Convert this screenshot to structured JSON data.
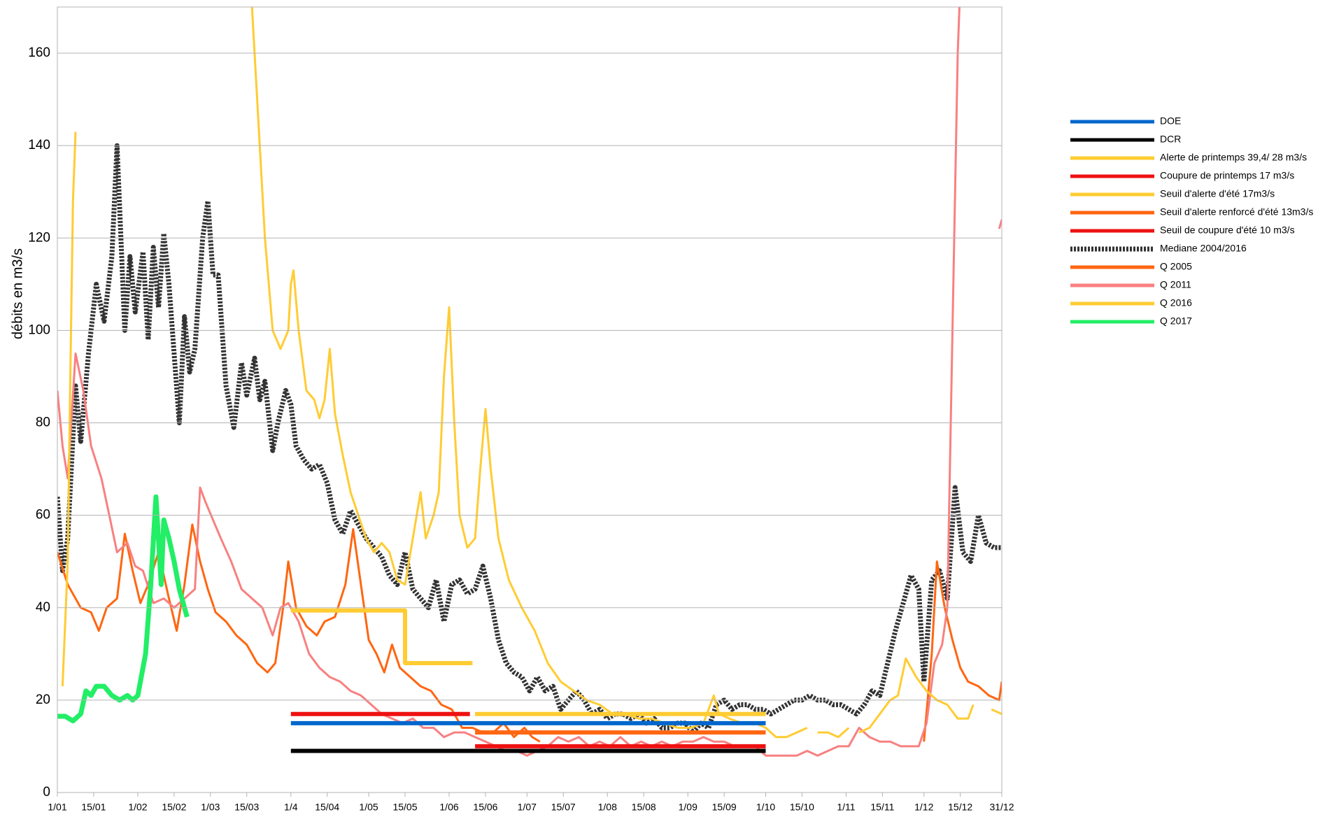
{
  "chart_data": {
    "type": "line",
    "y_label": "débits en m3/s",
    "xlim": [
      1,
      365
    ],
    "ylim": [
      0,
      170
    ],
    "grid": true,
    "legend": "right",
    "xticks": [
      {
        "value": 1,
        "label": "1/01"
      },
      {
        "value": 15,
        "label": "15/01"
      },
      {
        "value": 32,
        "label": "1/02"
      },
      {
        "value": 46,
        "label": "15/02"
      },
      {
        "value": 60,
        "label": "1/03"
      },
      {
        "value": 74,
        "label": "15/03"
      },
      {
        "value": 91,
        "label": "1/4"
      },
      {
        "value": 105,
        "label": "15/04"
      },
      {
        "value": 121,
        "label": "1/05"
      },
      {
        "value": 135,
        "label": "15/05"
      },
      {
        "value": 152,
        "label": "1/06"
      },
      {
        "value": 166,
        "label": "15/06"
      },
      {
        "value": 182,
        "label": "1/07"
      },
      {
        "value": 196,
        "label": "15/07"
      },
      {
        "value": 213,
        "label": "1/08"
      },
      {
        "value": 227,
        "label": "15/08"
      },
      {
        "value": 244,
        "label": "1/09"
      },
      {
        "value": 258,
        "label": "15/09"
      },
      {
        "value": 274,
        "label": "1/10"
      },
      {
        "value": 288,
        "label": "15/10"
      },
      {
        "value": 305,
        "label": "1/11"
      },
      {
        "value": 319,
        "label": "15/11"
      },
      {
        "value": 335,
        "label": "1/12"
      },
      {
        "value": 349,
        "label": "15/12"
      },
      {
        "value": 365,
        "label": "31/12"
      }
    ],
    "yticks": [
      0,
      20,
      40,
      60,
      80,
      100,
      120,
      140,
      160
    ],
    "series": [
      {
        "name": "DOE",
        "color": "#0066cc",
        "x": [
          91,
          274
        ],
        "values": [
          15,
          15
        ]
      },
      {
        "name": "DCR",
        "color": "#000000",
        "x": [
          91,
          274
        ],
        "values": [
          9,
          9
        ]
      },
      {
        "name": "Alerte de printemps 39,4/ 28 m3/s",
        "color": "#ffcc33",
        "x": [
          91,
          135,
          135,
          161
        ],
        "values": [
          39.4,
          39.4,
          28,
          28
        ]
      },
      {
        "name": "Coupure de printemps 17 m3/s",
        "color": "#ee1111",
        "x": [
          91,
          160
        ],
        "values": [
          17,
          17
        ]
      },
      {
        "name": "Seuil d'alerte d'été 17m3/s",
        "color": "#ffcc33",
        "x": [
          162,
          274
        ],
        "values": [
          17,
          17
        ]
      },
      {
        "name": "Seuil d'alerte renforcé d'été 13m3/s",
        "color": "#ff6611",
        "x": [
          162,
          274
        ],
        "values": [
          13,
          13
        ]
      },
      {
        "name": "Seuil de coupure d'été 10 m3/s",
        "color": "#ee1111",
        "x": [
          162,
          274
        ],
        "values": [
          10,
          10
        ]
      },
      {
        "name": "Mediane 2004/2016",
        "color": "#333333",
        "dashed": true,
        "x": [
          1,
          3,
          5,
          8,
          10,
          13,
          16,
          19,
          22,
          24,
          27,
          29,
          31,
          34,
          36,
          38,
          40,
          42,
          44,
          46,
          48,
          50,
          52,
          54,
          57,
          59,
          61,
          63,
          66,
          69,
          72,
          74,
          77,
          79,
          81,
          84,
          86,
          89,
          91,
          93,
          96,
          99,
          102,
          105,
          108,
          111,
          114,
          117,
          120,
          123,
          126,
          129,
          132,
          135,
          138,
          141,
          144,
          147,
          150,
          153,
          156,
          159,
          162,
          165,
          168,
          171,
          174,
          177,
          180,
          183,
          186,
          189,
          192,
          195,
          198,
          201,
          204,
          207,
          210,
          213,
          216,
          219,
          222,
          225,
          228,
          231,
          234,
          237,
          240,
          243,
          246,
          249,
          252,
          255,
          258,
          261,
          264,
          267,
          270,
          273,
          276,
          279,
          282,
          285,
          288,
          291,
          294,
          297,
          300,
          303,
          306,
          309,
          312,
          315,
          318,
          321,
          324,
          327,
          330,
          333,
          335,
          338,
          341,
          344,
          347,
          350,
          353,
          356,
          359,
          362,
          365
        ],
        "values": [
          64,
          48,
          55,
          88,
          76,
          95,
          110,
          102,
          116,
          140,
          100,
          116,
          104,
          117,
          98,
          118,
          105,
          121,
          110,
          95,
          80,
          103,
          91,
          96,
          120,
          128,
          112,
          112,
          88,
          79,
          93,
          86,
          94,
          85,
          89,
          74,
          80,
          87,
          84,
          75,
          72,
          70,
          71,
          67,
          59,
          56,
          61,
          58,
          55,
          53,
          51,
          47,
          45,
          52,
          44,
          42,
          40,
          46,
          37,
          45,
          46,
          43,
          44,
          49,
          42,
          33,
          28,
          26,
          25,
          22,
          25,
          22,
          23,
          18,
          20,
          22,
          20,
          17,
          18,
          16,
          17,
          17,
          16,
          17,
          15,
          16,
          14,
          14,
          15,
          15,
          13,
          15,
          14,
          19,
          20,
          18,
          19,
          19,
          18,
          18,
          17,
          18,
          19,
          20,
          20,
          21,
          20,
          20,
          19,
          19,
          18,
          17,
          19,
          22,
          21,
          28,
          35,
          41,
          47,
          44,
          24,
          46,
          48,
          42,
          66,
          52,
          50,
          60,
          54,
          53,
          53
        ]
      },
      {
        "name": "Q 2005",
        "color": "#ff6611",
        "x": [
          1,
          5,
          10,
          14,
          17,
          20,
          24,
          27,
          30,
          33,
          36,
          40,
          44,
          47,
          50,
          53,
          56,
          59,
          62,
          66,
          70,
          74,
          78,
          82,
          85,
          88,
          90,
          93,
          97,
          101,
          104,
          108,
          112,
          115,
          118,
          121,
          124,
          127,
          130,
          133,
          137,
          141,
          145,
          149,
          153,
          157,
          161,
          165,
          169,
          173,
          177,
          181,
          184,
          187,
          null,
          335,
          338,
          340,
          343,
          346,
          349,
          352,
          356,
          360,
          364,
          365
        ],
        "values": [
          52,
          45,
          40,
          39,
          35,
          40,
          42,
          56,
          48,
          41,
          45,
          52,
          42,
          35,
          45,
          58,
          50,
          44,
          39,
          37,
          34,
          32,
          28,
          26,
          28,
          40,
          50,
          40,
          36,
          34,
          37,
          38,
          45,
          57,
          45,
          33,
          30,
          26,
          32,
          27,
          25,
          23,
          22,
          19,
          18,
          14,
          14,
          13,
          13,
          15,
          12,
          14,
          12,
          11,
          null,
          11,
          30,
          50,
          40,
          33,
          27,
          24,
          23,
          21,
          20,
          24
        ]
      },
      {
        "name": "Q 2011",
        "color": "#f88080",
        "x": [
          1,
          3,
          5,
          8,
          11,
          14,
          18,
          21,
          24,
          28,
          31,
          34,
          38,
          42,
          46,
          50,
          54,
          56,
          58,
          61,
          64,
          68,
          72,
          76,
          80,
          84,
          87,
          90,
          94,
          98,
          102,
          106,
          110,
          114,
          118,
          122,
          126,
          130,
          134,
          138,
          142,
          146,
          150,
          154,
          158,
          162,
          166,
          170,
          174,
          178,
          182,
          186,
          190,
          194,
          198,
          202,
          206,
          210,
          214,
          218,
          222,
          226,
          230,
          234,
          238,
          242,
          246,
          250,
          254,
          258,
          262,
          266,
          270,
          274,
          278,
          282,
          286,
          290,
          294,
          298,
          302,
          306,
          310,
          314,
          318,
          322,
          326,
          330,
          333,
          336,
          339,
          342,
          344,
          346,
          348,
          349,
          null,
          364,
          365
        ],
        "values": [
          87,
          75,
          68,
          95,
          87,
          75,
          68,
          60,
          52,
          54,
          49,
          48,
          41,
          42,
          40,
          42,
          44,
          66,
          63,
          59,
          55,
          50,
          44,
          42,
          40,
          34,
          40,
          41,
          37,
          30,
          27,
          25,
          24,
          22,
          21,
          19,
          17,
          16,
          15,
          16,
          14,
          14,
          12,
          13,
          13,
          12,
          11,
          10,
          9,
          9,
          8,
          9,
          10,
          12,
          11,
          12,
          10,
          11,
          10,
          12,
          10,
          11,
          10,
          11,
          10,
          11,
          11,
          12,
          11,
          11,
          10,
          10,
          10,
          8,
          8,
          8,
          8,
          9,
          8,
          9,
          10,
          10,
          14,
          12,
          11,
          11,
          10,
          10,
          10,
          15,
          28,
          32,
          40,
          100,
          160,
          175,
          null,
          122,
          124
        ]
      },
      {
        "name": "Q 2016",
        "color": "#ffcc33",
        "x": [
          3,
          5,
          6,
          7,
          8,
          null,
          76,
          78,
          81,
          84,
          87,
          90,
          91,
          92,
          94,
          97,
          100,
          102,
          104,
          106,
          108,
          111,
          114,
          117,
          120,
          123,
          126,
          129,
          132,
          135,
          138,
          141,
          143,
          146,
          148,
          150,
          152,
          154,
          156,
          159,
          162,
          164,
          166,
          168,
          171,
          175,
          180,
          185,
          190,
          195,
          200,
          205,
          210,
          215,
          220,
          225,
          230,
          235,
          240,
          245,
          250,
          254,
          256,
          260,
          265,
          270,
          274,
          278,
          282,
          286,
          290,
          null,
          294,
          298,
          302,
          306,
          null,
          310,
          314,
          318,
          322,
          325,
          328,
          332,
          336,
          340,
          344,
          348,
          352,
          354,
          null,
          361,
          365
        ],
        "values": [
          23,
          50,
          90,
          128,
          143,
          null,
          170,
          150,
          120,
          100,
          96,
          100,
          110,
          113,
          100,
          87,
          85,
          81,
          85,
          96,
          82,
          73,
          65,
          60,
          55,
          52,
          54,
          52,
          46,
          45,
          55,
          65,
          55,
          60,
          65,
          90,
          105,
          80,
          60,
          53,
          55,
          70,
          83,
          70,
          55,
          46,
          40,
          35,
          28,
          24,
          22,
          20,
          19,
          17,
          17,
          16,
          16,
          15,
          14,
          14,
          15,
          21,
          17,
          16,
          15,
          15,
          14,
          12,
          12,
          13,
          14,
          null,
          13,
          13,
          12,
          14,
          null,
          13,
          14,
          17,
          20,
          21,
          29,
          25,
          22,
          20,
          19,
          16,
          16,
          19,
          null,
          18,
          17
        ]
      },
      {
        "name": "Q 2017",
        "color": "#22ee66",
        "x": [
          1,
          4,
          7,
          10,
          12,
          14,
          16,
          19,
          22,
          25,
          28,
          30,
          32,
          35,
          37,
          39,
          41,
          42,
          44,
          46,
          48,
          51
        ],
        "values": [
          16.5,
          16.5,
          15.5,
          17,
          22,
          21,
          23,
          23,
          21,
          20,
          21,
          20,
          21,
          30,
          45,
          64,
          45,
          59,
          55,
          50,
          44,
          38
        ]
      }
    ]
  }
}
